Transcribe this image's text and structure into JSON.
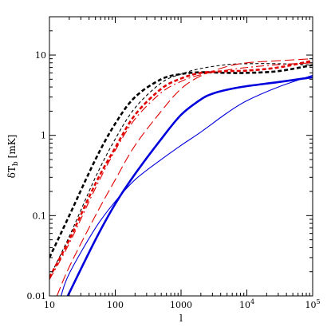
{
  "chart_data": {
    "type": "line",
    "title": "",
    "xlabel": "l",
    "ylabel": "δT_b [mK]",
    "ylabel_main": "δT",
    "ylabel_sub": "b",
    "ylabel_unit": "[mK]",
    "xscale": "log",
    "yscale": "log",
    "xlim": [
      10,
      100000
    ],
    "ylim": [
      0.01,
      30
    ],
    "grid": false,
    "legend": "none",
    "x_ticks": [
      {
        "value": 10,
        "label": "10"
      },
      {
        "value": 100,
        "label": "100"
      },
      {
        "value": 1000,
        "label": "1000"
      },
      {
        "value": 10000,
        "label": "10",
        "exp": "4"
      },
      {
        "value": 100000,
        "label": "10",
        "exp": "5"
      }
    ],
    "y_ticks": [
      {
        "value": 0.01,
        "label": "0.01"
      },
      {
        "value": 0.1,
        "label": "0.1"
      },
      {
        "value": 1,
        "label": "1"
      },
      {
        "value": 10,
        "label": "10"
      }
    ],
    "series": [
      {
        "color": "#000000",
        "style": "dashed",
        "width": "thick",
        "x": [
          10,
          20,
          50,
          100,
          200,
          500,
          1000,
          2000,
          5000,
          10000,
          30000,
          100000
        ],
        "y": [
          0.03,
          0.1,
          0.5,
          1.4,
          3.0,
          5.0,
          5.8,
          6.1,
          6.0,
          6.0,
          6.3,
          7.5
        ]
      },
      {
        "color": "#000000",
        "style": "dashed",
        "width": "thin",
        "x": [
          10,
          20,
          50,
          100,
          200,
          500,
          1000,
          2000,
          5000,
          10000,
          30000,
          100000
        ],
        "y": [
          0.017,
          0.055,
          0.3,
          0.9,
          2.2,
          4.5,
          5.8,
          6.8,
          7.6,
          7.8,
          7.8,
          7.5
        ]
      },
      {
        "color": "#e00000",
        "style": "dashed",
        "width": "thick",
        "x": [
          10,
          20,
          50,
          100,
          200,
          500,
          1000,
          2000,
          5000,
          10000,
          30000,
          100000
        ],
        "y": [
          0.017,
          0.05,
          0.25,
          0.7,
          1.8,
          3.8,
          5.1,
          6.0,
          6.3,
          6.4,
          7.0,
          8.5
        ]
      },
      {
        "color": "#e00000",
        "style": "dashdot",
        "width": "thin",
        "x": [
          10,
          20,
          50,
          100,
          200,
          500,
          1000,
          2000,
          5000,
          10000,
          30000,
          100000
        ],
        "y": [
          0.016,
          0.045,
          0.22,
          0.65,
          1.6,
          3.4,
          4.7,
          5.7,
          6.5,
          7.0,
          7.6,
          8.0
        ]
      },
      {
        "color": "#e00000",
        "style": "longdash",
        "width": "thin",
        "x": [
          13,
          20,
          50,
          100,
          200,
          500,
          1000,
          2000,
          5000,
          10000,
          30000,
          100000
        ],
        "y": [
          0.01,
          0.023,
          0.1,
          0.28,
          0.75,
          2.0,
          3.8,
          5.5,
          7.2,
          8.0,
          8.5,
          9.0
        ]
      },
      {
        "color": "#0000dd",
        "style": "solid",
        "width": "thick",
        "x": [
          19,
          50,
          100,
          200,
          500,
          1000,
          2000,
          3000,
          5000,
          10000,
          30000,
          100000
        ],
        "y": [
          0.01,
          0.05,
          0.14,
          0.33,
          0.9,
          1.8,
          2.8,
          3.3,
          3.7,
          4.1,
          4.6,
          5.3
        ]
      },
      {
        "color": "#0000dd",
        "style": "solid",
        "width": "thin",
        "x": [
          15,
          20,
          50,
          100,
          200,
          500,
          1000,
          2000,
          5000,
          10000,
          30000,
          100000
        ],
        "y": [
          0.01,
          0.019,
          0.07,
          0.15,
          0.28,
          0.5,
          0.75,
          1.1,
          1.9,
          2.7,
          4.0,
          5.6
        ]
      }
    ]
  }
}
